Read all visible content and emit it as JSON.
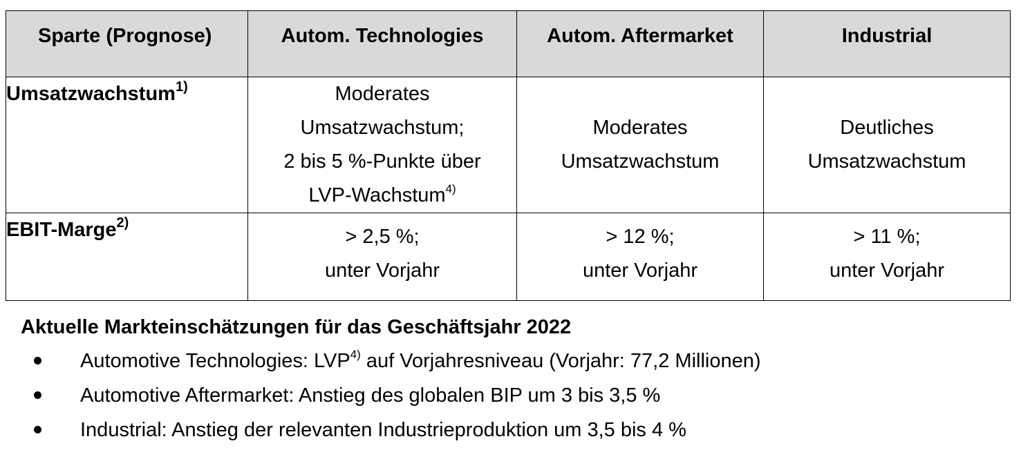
{
  "table": {
    "headers": [
      "Sparte (Prognose)",
      "Autom. Technologies",
      "Autom. Aftermarket",
      "Industrial"
    ],
    "row1": {
      "label": "Umsatzwachstum",
      "label_sup": "1)",
      "tech": [
        "Moderates",
        "Umsatzwachstum;",
        "2 bis 5 %-Punkte über",
        "LVP-Wachstum"
      ],
      "tech_sup": "4)",
      "aftermarket": [
        "Moderates",
        "Umsatzwachstum"
      ],
      "industrial": [
        "Deutliches",
        "Umsatzwachstum"
      ]
    },
    "row2": {
      "label": "EBIT-Marge",
      "label_sup": "2)",
      "tech": [
        "> 2,5 %;",
        "unter Vorjahr"
      ],
      "aftermarket": [
        "> 12 %;",
        "unter Vorjahr"
      ],
      "industrial": [
        "> 11 %;",
        "unter Vorjahr"
      ]
    }
  },
  "market": {
    "title": "Aktuelle Markteinschätzungen für das Geschäftsjahr 2022",
    "bullet1_a": "Automotive Technologies: LVP",
    "bullet1_sup": "4)",
    "bullet1_b": " auf Vorjahresniveau (Vorjahr: 77,2 Millionen)",
    "bullet2": "Automotive Aftermarket: Anstieg des globalen BIP um 3 bis 3,5 %",
    "bullet3": "Industrial: Anstieg der relevanten Industrieproduktion um 3,5 bis 4 %"
  }
}
